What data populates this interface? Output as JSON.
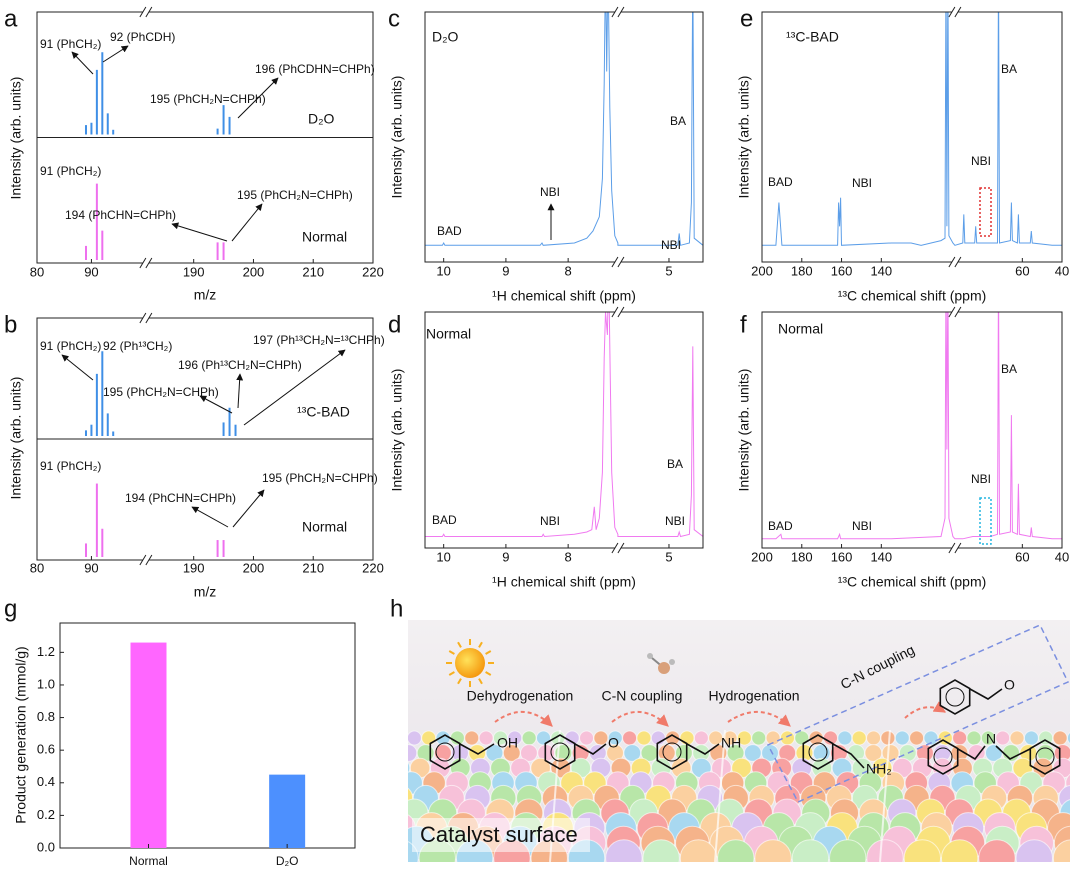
{
  "chart_data": [
    {
      "panel": "a",
      "type": "stem",
      "xlabel": "m/z",
      "ylabel": "Intensity (arb. units)",
      "xlim": [
        80,
        220
      ],
      "xbreak": [
        100,
        182
      ],
      "xticks": [
        80,
        90,
        190,
        200,
        210,
        220
      ],
      "ylim": [
        0,
        1
      ],
      "series": [
        {
          "name": "D₂O",
          "color": "#3f8fe6",
          "x": [
            89,
            90,
            91,
            92,
            93,
            94,
            194,
            195,
            196
          ],
          "values": [
            0.08,
            0.1,
            0.55,
            0.7,
            0.18,
            0.04,
            0.05,
            0.25,
            0.15
          ]
        },
        {
          "name": "Normal",
          "color": "#ee6fee",
          "x": [
            89,
            91,
            92,
            194,
            195
          ],
          "values": [
            0.12,
            0.65,
            0.25,
            0.15,
            0.15
          ]
        }
      ],
      "annotations": [
        "91 (PhCH₂)",
        "92 (PhCDH)",
        "195 (PhCH₂N=CHPh)",
        "196 (PhCDHN=CHPh)",
        "91 (PhCH₂)",
        "194 (PhCHN=CHPh)",
        "195 (PhCH₂N=CHPh)"
      ]
    },
    {
      "panel": "b",
      "type": "stem",
      "xlabel": "m/z",
      "ylabel": "Intensity (arb. units)",
      "xlim": [
        80,
        220
      ],
      "xbreak": [
        100,
        182
      ],
      "xticks": [
        80,
        90,
        190,
        200,
        210,
        220
      ],
      "ylim": [
        0,
        1
      ],
      "series": [
        {
          "name": "¹³C-BAD",
          "color": "#3f8fe6",
          "x": [
            89,
            90,
            91,
            92,
            93,
            94,
            195,
            196,
            197
          ],
          "values": [
            0.05,
            0.1,
            0.55,
            0.75,
            0.2,
            0.04,
            0.12,
            0.25,
            0.1
          ]
        },
        {
          "name": "Normal",
          "color": "#ee6fee",
          "x": [
            89,
            91,
            92,
            194,
            195
          ],
          "values": [
            0.12,
            0.65,
            0.25,
            0.15,
            0.15
          ]
        }
      ],
      "annotations": [
        "91 (PhCH₂)",
        "92 (Ph¹³CH₂)",
        "195 (PhCH₂N=CHPh)",
        "196 (Ph¹³CH₂N=CHPh)",
        "197 (Ph¹³CH₂N=¹³CHPh)",
        "91 (PhCH₂)",
        "194 (PhCHN=CHPh)",
        "195 (PhCH₂N=CHPh)"
      ]
    },
    {
      "panel": "c",
      "type": "line",
      "xlabel": "¹H chemical shift (ppm)",
      "ylabel": "Intensity (arb. units)",
      "xlim": [
        10.3,
        4.5
      ],
      "xbreak": [
        7.2,
        5.75
      ],
      "xticks": [
        10,
        9,
        8,
        5
      ],
      "ylim": [
        -0.05,
        1
      ],
      "x": [
        10.3,
        10.02,
        10.0,
        9.98,
        8.45,
        8.42,
        8.4,
        7.9,
        7.7,
        7.6,
        7.5,
        7.45,
        7.42,
        7.4,
        7.38,
        7.36,
        7.33,
        7.3,
        7.25,
        7.2,
        5.75,
        5.0,
        4.87,
        4.85,
        4.83,
        4.7,
        4.67,
        4.65,
        4.63,
        4.5
      ],
      "series": [
        {
          "name": "D₂O",
          "color": "#5c9ee8",
          "values": [
            0.02,
            0.02,
            0.03,
            0.02,
            0.02,
            0.03,
            0.02,
            0.03,
            0.05,
            0.08,
            0.14,
            0.3,
            0.7,
            1.2,
            0.75,
            1.2,
            0.6,
            0.25,
            0.06,
            0.03,
            0.02,
            0.02,
            0.02,
            0.07,
            0.02,
            0.03,
            0.2,
            1.2,
            0.05,
            0.02
          ]
        }
      ],
      "annotations": [
        "BA",
        "NBI",
        "BAD",
        "NBI"
      ]
    },
    {
      "panel": "d",
      "type": "line",
      "xlabel": "¹H chemical shift (ppm)",
      "ylabel": "Intensity (arb. units)",
      "xlim": [
        10.3,
        4.5
      ],
      "xbreak": [
        7.2,
        5.75
      ],
      "xticks": [
        10,
        9,
        8,
        5
      ],
      "ylim": [
        -0.03,
        1
      ],
      "x": [
        10.3,
        10.02,
        10.0,
        9.98,
        8.42,
        8.4,
        8.38,
        7.9,
        7.7,
        7.62,
        7.58,
        7.55,
        7.5,
        7.45,
        7.42,
        7.4,
        7.37,
        7.35,
        7.3,
        7.25,
        7.2,
        5.75,
        5.0,
        4.87,
        4.85,
        4.83,
        4.7,
        4.67,
        4.65,
        4.63,
        4.5
      ],
      "series": [
        {
          "name": "Normal",
          "color": "#f07af0",
          "values": [
            0.02,
            0.02,
            0.03,
            0.02,
            0.02,
            0.03,
            0.02,
            0.03,
            0.04,
            0.05,
            0.15,
            0.05,
            0.1,
            0.3,
            0.8,
            1.0,
            0.9,
            1.2,
            0.3,
            0.06,
            0.03,
            0.02,
            0.02,
            0.02,
            0.04,
            0.02,
            0.03,
            0.2,
            0.85,
            0.05,
            0.02
          ]
        }
      ],
      "annotations": [
        "BA",
        "BAD",
        "NBI",
        "NBI"
      ]
    },
    {
      "panel": "e",
      "type": "line",
      "xlabel": "¹³C chemical shift (ppm)",
      "ylabel": "Intensity (arb. units)",
      "xlim": [
        200,
        40
      ],
      "xbreak": [
        103,
        94
      ],
      "xticks": [
        200,
        180,
        160,
        140,
        60,
        40
      ],
      "ylim": [
        -0.05,
        1
      ],
      "x": [
        200,
        193,
        191.5,
        190,
        165,
        162,
        161.5,
        161,
        160.5,
        160,
        135,
        125,
        120,
        110,
        108,
        107.5,
        107,
        106.5,
        106,
        104,
        103,
        94,
        90,
        89.5,
        89,
        84,
        83.5,
        83,
        76,
        72.5,
        72,
        71.5,
        66,
        65.5,
        65,
        62.5,
        62,
        61.5,
        56,
        55.5,
        55,
        45,
        40
      ],
      "series": [
        {
          "name": "¹³C-BAD",
          "color": "#5c9ee8",
          "values": [
            0.02,
            0.02,
            0.2,
            0.02,
            0.02,
            0.02,
            0.2,
            0.1,
            0.22,
            0.02,
            0.03,
            0.03,
            0.02,
            0.04,
            0.05,
            1.2,
            0.1,
            1.2,
            0.06,
            0.03,
            0.02,
            0.02,
            0.03,
            0.15,
            0.03,
            0.03,
            0.1,
            0.03,
            0.03,
            0.03,
            1.2,
            0.03,
            0.04,
            0.2,
            0.04,
            0.03,
            0.15,
            0.03,
            0.03,
            0.08,
            0.03,
            0.02,
            0.02
          ]
        }
      ],
      "annotations": [
        "BA",
        "NBI",
        "BAD",
        "NBI"
      ]
    },
    {
      "panel": "f",
      "type": "line",
      "xlabel": "¹³C chemical shift (ppm)",
      "ylabel": "Intensity (arb. units)",
      "xlim": [
        200,
        40
      ],
      "xbreak": [
        103,
        94
      ],
      "xticks": [
        200,
        180,
        160,
        140,
        60,
        40
      ],
      "ylim": [
        -0.03,
        1
      ],
      "x": [
        200,
        193,
        190.5,
        190,
        162,
        161,
        160.5,
        135,
        110,
        108,
        107.5,
        107,
        106.5,
        106,
        104,
        103,
        94,
        90,
        85,
        76,
        72.5,
        72,
        71.5,
        66,
        65.5,
        65,
        62.5,
        62,
        61.5,
        56,
        55.5,
        55,
        45,
        40
      ],
      "series": [
        {
          "name": "Normal",
          "color": "#f07af0",
          "values": [
            0.01,
            0.01,
            0.03,
            0.01,
            0.01,
            0.03,
            0.01,
            0.01,
            0.02,
            0.1,
            1.2,
            0.4,
            1.2,
            0.1,
            0.02,
            0.01,
            0.01,
            0.01,
            0.02,
            0.02,
            0.03,
            1.2,
            0.03,
            0.04,
            0.55,
            0.04,
            0.03,
            0.25,
            0.03,
            0.02,
            0.06,
            0.02,
            0.01,
            0.01
          ]
        }
      ],
      "annotations": [
        "BA",
        "NBI",
        "BAD",
        "NBI"
      ]
    },
    {
      "panel": "g",
      "type": "bar",
      "ylabel": "Product generation (mmol/g)",
      "categories": [
        "Normal",
        "D₂O"
      ],
      "values": [
        1.26,
        0.45
      ],
      "colors": [
        "#ff66ff",
        "#4d90fe"
      ],
      "ylim": [
        0,
        1.38
      ],
      "yticks": [
        {
          "value": 0,
          "label": "0.0"
        },
        0.2,
        0.4,
        0.6,
        0.8,
        {
          "value": 1,
          "label": "1.0"
        },
        1.2
      ]
    }
  ],
  "diagram": {
    "panel": "h",
    "steps": [
      "Dehydrogenation",
      "C-N coupling",
      "Hydrogenation",
      "C-N coupling"
    ],
    "surface_label": "Catalyst surface",
    "atoms": [
      "OH",
      "O",
      "NH",
      "NH₂",
      "N",
      "O"
    ]
  }
}
